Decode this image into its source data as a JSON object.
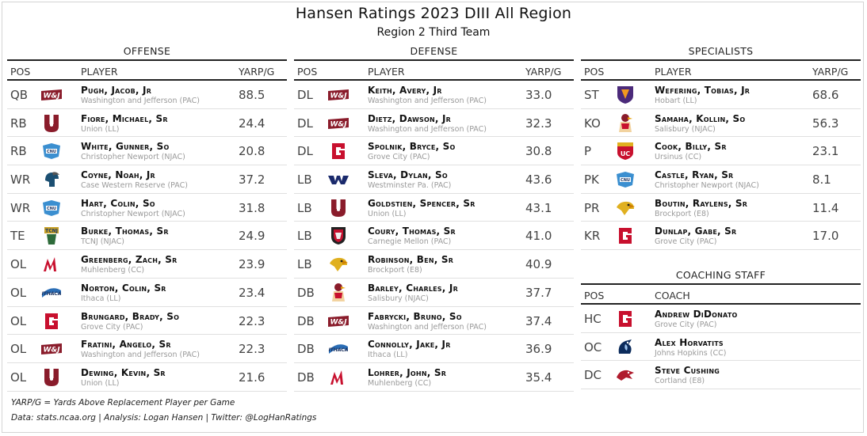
{
  "header": {
    "title": "Hansen Ratings 2023 DIII All Region",
    "subtitle": "Region 2 Third Team"
  },
  "columns": {
    "pos": "POS",
    "player": "PLAYER",
    "value": "YARP/G",
    "coach": "COACH"
  },
  "offense": {
    "title": "OFFENSE",
    "rows": [
      {
        "pos": "QB",
        "name": "Pugh, Jacob, Jr",
        "school": "Washington and Jefferson (PAC)",
        "value": "88.5",
        "logo": "wj-logo"
      },
      {
        "pos": "RB",
        "name": "Fiore, Michael, Sr",
        "school": "Union (LL)",
        "value": "24.4",
        "logo": "union-u-logo"
      },
      {
        "pos": "RB",
        "name": "White, Gunner, So",
        "school": "Christopher Newport (NJAC)",
        "value": "20.8",
        "logo": "cnu-logo"
      },
      {
        "pos": "WR",
        "name": "Coyne, Noah, Jr",
        "school": "Case Western Reserve (PAC)",
        "value": "37.2",
        "logo": "spartan-logo"
      },
      {
        "pos": "WR",
        "name": "Hart, Colin, So",
        "school": "Christopher Newport (NJAC)",
        "value": "31.8",
        "logo": "cnu-logo"
      },
      {
        "pos": "TE",
        "name": "Burke, Thomas, Sr",
        "school": "TCNJ (NJAC)",
        "value": "24.9",
        "logo": "tcnj-logo"
      },
      {
        "pos": "OL",
        "name": "Greenberg, Zach, Sr",
        "school": "Muhlenberg (CC)",
        "value": "23.9",
        "logo": "muhlenberg-m-logo"
      },
      {
        "pos": "OL",
        "name": "Norton, Colin, Sr",
        "school": "Ithaca (LL)",
        "value": "23.4",
        "logo": "ithaca-logo"
      },
      {
        "pos": "OL",
        "name": "Brungard, Brady, So",
        "school": "Grove City (PAC)",
        "value": "22.3",
        "logo": "grove-city-g-logo"
      },
      {
        "pos": "OL",
        "name": "Fratini, Angelo, Sr",
        "school": "Washington and Jefferson (PAC)",
        "value": "22.3",
        "logo": "wj-logo"
      },
      {
        "pos": "OL",
        "name": "Dewing, Kevin, Sr",
        "school": "Union (LL)",
        "value": "21.6",
        "logo": "union-u-logo"
      }
    ]
  },
  "defense": {
    "title": "DEFENSE",
    "rows": [
      {
        "pos": "DL",
        "name": "Keith, Avery, Jr",
        "school": "Washington and Jefferson (PAC)",
        "value": "33.0",
        "logo": "wj-logo"
      },
      {
        "pos": "DL",
        "name": "Dietz, Dawson, Jr",
        "school": "Washington and Jefferson (PAC)",
        "value": "32.3",
        "logo": "wj-logo"
      },
      {
        "pos": "DL",
        "name": "Spolnik, Bryce, So",
        "school": "Grove City (PAC)",
        "value": "30.8",
        "logo": "grove-city-g-logo"
      },
      {
        "pos": "LB",
        "name": "Sleva, Dylan, So",
        "school": "Westminster Pa. (PAC)",
        "value": "43.6",
        "logo": "westminster-logo"
      },
      {
        "pos": "LB",
        "name": "Goldstien, Spencer, Sr",
        "school": "Union (LL)",
        "value": "43.1",
        "logo": "union-u-logo"
      },
      {
        "pos": "LB",
        "name": "Coury, Thomas, Sr",
        "school": "Carnegie Mellon (PAC)",
        "value": "41.0",
        "logo": "cmu-logo"
      },
      {
        "pos": "LB",
        "name": "Robinson, Ben, Sr",
        "school": "Brockport (E8)",
        "value": "40.9",
        "logo": "brockport-eagle-logo"
      },
      {
        "pos": "DB",
        "name": "Barley, Charles, Jr",
        "school": "Salisbury (NJAC)",
        "value": "37.7",
        "logo": "salisbury-logo"
      },
      {
        "pos": "DB",
        "name": "Fabrycki, Bruno, So",
        "school": "Washington and Jefferson (PAC)",
        "value": "37.4",
        "logo": "wj-logo"
      },
      {
        "pos": "DB",
        "name": "Connolly, Jake, Jr",
        "school": "Ithaca (LL)",
        "value": "36.9",
        "logo": "ithaca-logo"
      },
      {
        "pos": "DB",
        "name": "Lohrer, John, Sr",
        "school": "Muhlenberg (CC)",
        "value": "35.4",
        "logo": "muhlenberg-m-logo"
      }
    ]
  },
  "specialists": {
    "title": "SPECIALISTS",
    "rows": [
      {
        "pos": "ST",
        "name": "Wefering, Tobias, Jr",
        "school": "Hobart (LL)",
        "value": "68.6",
        "logo": "hobart-logo"
      },
      {
        "pos": "KO",
        "name": "Samaha, Kollin, So",
        "school": "Salisbury (NJAC)",
        "value": "56.3",
        "logo": "salisbury-logo"
      },
      {
        "pos": "P",
        "name": "Cook, Billy, Sr",
        "school": "Ursinus (CC)",
        "value": "23.1",
        "logo": "ursinus-logo"
      },
      {
        "pos": "PK",
        "name": "Castle, Ryan, Sr",
        "school": "Christopher Newport (NJAC)",
        "value": "8.1",
        "logo": "cnu-logo"
      },
      {
        "pos": "PR",
        "name": "Boutin, Raylens, Sr",
        "school": "Brockport (E8)",
        "value": "11.4",
        "logo": "brockport-eagle-logo"
      },
      {
        "pos": "KR",
        "name": "Dunlap, Gabe, Sr",
        "school": "Grove City (PAC)",
        "value": "17.0",
        "logo": "grove-city-g-logo"
      }
    ]
  },
  "coaching": {
    "title": "COACHING STAFF",
    "rows": [
      {
        "pos": "HC",
        "name": "Andrew DiDonato",
        "school": "Grove City (PAC)",
        "logo": "grove-city-g-logo"
      },
      {
        "pos": "OC",
        "name": "Alex Horvatits",
        "school": "Johns Hopkins (CC)",
        "logo": "jhu-bluejay-logo"
      },
      {
        "pos": "DC",
        "name": "Steve Cushing",
        "school": "Cortland (E8)",
        "logo": "cortland-logo"
      }
    ]
  },
  "footer": {
    "note": "YARP/G = Yards Above Replacement Player per Game",
    "credits": "Data: stats.ncaa.org | Analysis: Logan Hansen | Twitter: @LogHanRatings"
  },
  "colors": {
    "maroon": "#8a1c2b",
    "red": "#c8102e",
    "navy": "#1d3461",
    "purple": "#4b2a7a",
    "gold": "#e0b020"
  }
}
